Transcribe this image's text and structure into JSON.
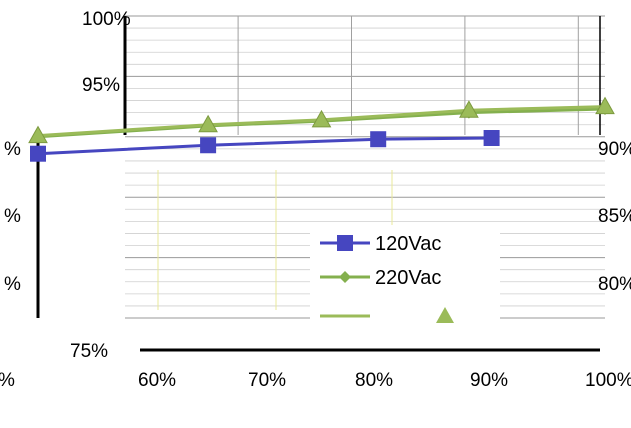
{
  "chart_data": {
    "type": "line",
    "title": "",
    "xlabel": "",
    "ylabel": "",
    "x_ticks": [
      "60%",
      "70%",
      "80%",
      "90%",
      "100%"
    ],
    "y_ticks": [
      "75%",
      "80%",
      "85%",
      "90%",
      "95%",
      "100%"
    ],
    "xlim": [
      50,
      100
    ],
    "ylim": [
      75,
      100
    ],
    "grid": true,
    "legend_position": "center-right",
    "series": [
      {
        "name": "120Vac",
        "color": "#4646c0",
        "marker": "square",
        "x": [
          50,
          65,
          80,
          90
        ],
        "y": [
          88.6,
          89.3,
          89.8,
          89.9
        ]
      },
      {
        "name": "220Vac",
        "color": "#84b04e",
        "marker": "diamond",
        "x": [
          50,
          65,
          75,
          88,
          100
        ],
        "y": [
          90.0,
          90.9,
          91.3,
          92.0,
          92.3
        ]
      },
      {
        "name": "",
        "color": "#9bbb59",
        "marker": "triangle",
        "x": [
          50,
          65,
          75,
          88,
          100
        ],
        "y": [
          90.1,
          91.0,
          91.4,
          92.2,
          92.5
        ]
      }
    ]
  }
}
